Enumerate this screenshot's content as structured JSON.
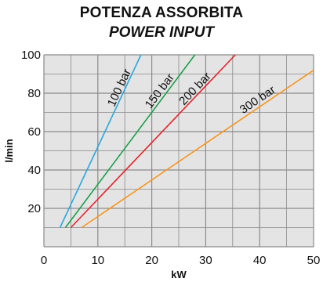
{
  "chart_data": {
    "type": "line",
    "title": "POTENZA ASSORBITA",
    "subtitle": "POWER INPUT",
    "xlabel": "kW",
    "ylabel": "l/min",
    "xlim": [
      0,
      50
    ],
    "ylim": [
      0,
      100
    ],
    "x_ticks": [
      0,
      10,
      20,
      30,
      40,
      50
    ],
    "y_ticks": [
      20,
      40,
      60,
      80,
      100
    ],
    "grid": true,
    "series": [
      {
        "name": "100 bar",
        "color": "#29a8e0",
        "x": [
          3,
          18
        ],
        "y": [
          10,
          100
        ]
      },
      {
        "name": "150 bar",
        "color": "#1aa04a",
        "x": [
          4,
          28
        ],
        "y": [
          10,
          100
        ]
      },
      {
        "name": "200 bar",
        "color": "#e3242b",
        "x": [
          5,
          35.5
        ],
        "y": [
          10,
          100
        ]
      },
      {
        "name": "300 bar",
        "color": "#f7941d",
        "x": [
          7,
          50
        ],
        "y": [
          10,
          92
        ]
      }
    ]
  }
}
